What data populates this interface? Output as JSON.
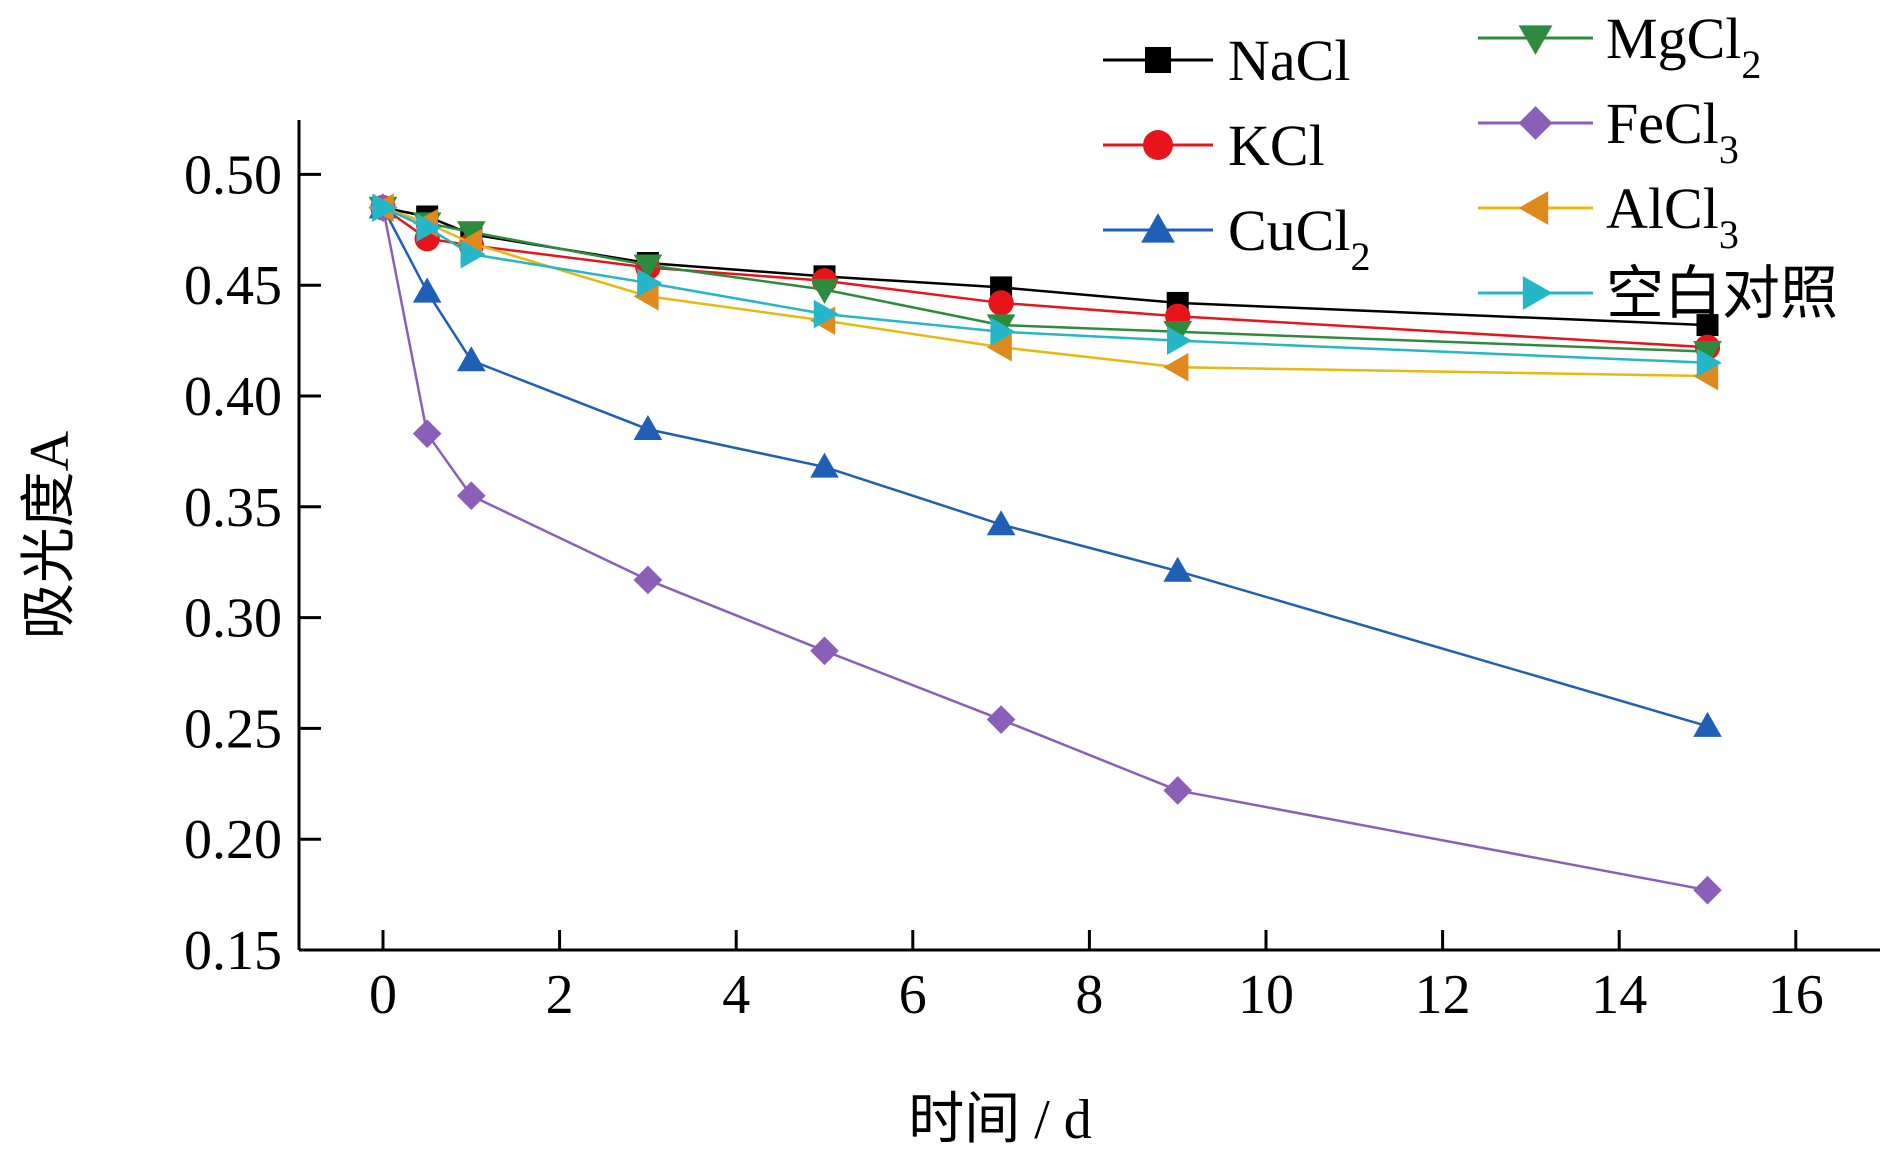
{
  "chart_data": {
    "type": "line",
    "title": "",
    "xlabel": "时间 / d",
    "ylabel": "吸光度A",
    "xlim": [
      -1,
      17
    ],
    "ylim": [
      0.15,
      0.525
    ],
    "xticks": [
      0,
      2,
      4,
      6,
      8,
      10,
      12,
      14,
      16
    ],
    "xtick_labels": [
      "0",
      "2",
      "4",
      "6",
      "8",
      "10",
      "12",
      "14",
      "16"
    ],
    "yticks": [
      0.15,
      0.2,
      0.25,
      0.3,
      0.35,
      0.4,
      0.45,
      0.5
    ],
    "ytick_labels": [
      "0.15",
      "0.20",
      "0.25",
      "0.30",
      "0.35",
      "0.40",
      "0.45",
      "0.50"
    ],
    "grid": false,
    "legend_position": "top-right",
    "x": [
      0,
      0.5,
      1,
      3,
      5,
      7,
      9,
      15
    ],
    "series": [
      {
        "name": "NaCl",
        "label_main": "NaCl",
        "label_sub": "",
        "color": "#000000",
        "marker": "square",
        "values": [
          0.485,
          0.481,
          0.473,
          0.46,
          0.454,
          0.449,
          0.442,
          0.432
        ]
      },
      {
        "name": "KCl",
        "label_main": "KCl",
        "label_sub": "",
        "color": "#e8141c",
        "marker": "circle",
        "values": [
          0.485,
          0.471,
          0.468,
          0.458,
          0.452,
          0.442,
          0.436,
          0.422
        ]
      },
      {
        "name": "CuCl2",
        "label_main": "CuCl",
        "label_sub": "2",
        "color": "#1f5fb5",
        "marker": "triangle-up",
        "values": [
          0.485,
          0.447,
          0.416,
          0.385,
          0.368,
          0.342,
          0.321,
          0.251
        ]
      },
      {
        "name": "MgCl2",
        "label_main": "MgCl",
        "label_sub": "2",
        "color": "#2e8b3e",
        "marker": "triangle-down",
        "values": [
          0.485,
          0.478,
          0.474,
          0.459,
          0.448,
          0.432,
          0.429,
          0.42
        ]
      },
      {
        "name": "FeCl3",
        "label_main": "FeCl",
        "label_sub": "3",
        "color": "#8b5fb8",
        "marker": "diamond",
        "values": [
          0.485,
          0.383,
          0.355,
          0.317,
          0.285,
          0.254,
          0.222,
          0.177
        ]
      },
      {
        "name": "AlCl3",
        "label_main": "AlCl",
        "label_sub": "3",
        "color": "#e8b810",
        "marker_color": "#e08a1e",
        "marker": "triangle-left",
        "values": [
          0.485,
          0.478,
          0.469,
          0.445,
          0.434,
          0.422,
          0.413,
          0.409
        ]
      },
      {
        "name": "空白对照",
        "label_main": "空白对照",
        "label_sub": "",
        "color": "#25b6c8",
        "marker": "triangle-right",
        "values": [
          0.485,
          0.476,
          0.464,
          0.451,
          0.437,
          0.429,
          0.425,
          0.415
        ]
      }
    ]
  }
}
